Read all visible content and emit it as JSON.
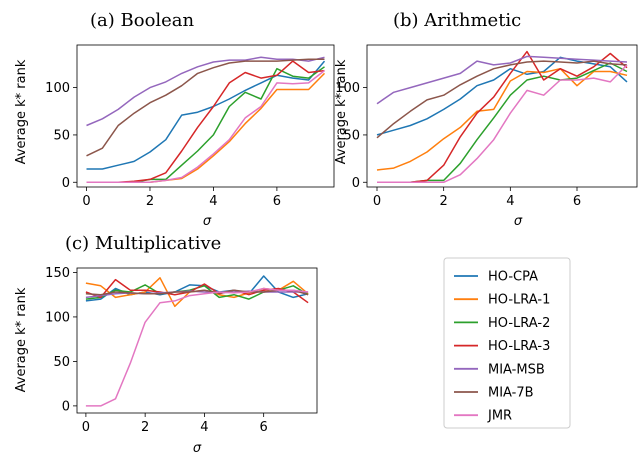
{
  "series_names": [
    "HO-CPA",
    "HO-LRA-1",
    "HO-LRA-2",
    "HO-LRA-3",
    "MIA-MSB",
    "MIA-7B",
    "JMR"
  ],
  "series_colors": [
    "#1f77b4",
    "#ff7f0e",
    "#2ca02c",
    "#d62728",
    "#9467bd",
    "#8c564b",
    "#e377c2"
  ],
  "chart_data": [
    {
      "type": "line",
      "title": "(a) Boolean",
      "xlabel": "σ",
      "ylabel": "Average k* rank",
      "xlim": [
        -0.3,
        7.8
      ],
      "ylim": [
        -5,
        145
      ],
      "xticks": [
        0,
        2,
        4,
        6
      ],
      "yticks": [
        0,
        50,
        100
      ],
      "x": [
        0,
        0.5,
        1,
        1.5,
        2,
        2.5,
        3,
        3.5,
        4,
        4.5,
        5,
        5.5,
        6,
        6.5,
        7,
        7.5
      ],
      "series": [
        {
          "name": "HO-CPA",
          "values": [
            14,
            14,
            18,
            22,
            32,
            45,
            71,
            74,
            80,
            88,
            97,
            105,
            113,
            110,
            108,
            128
          ]
        },
        {
          "name": "HO-LRA-1",
          "values": [
            0,
            0,
            0,
            0,
            0,
            2,
            4,
            14,
            28,
            43,
            62,
            78,
            98,
            98,
            98,
            115
          ]
        },
        {
          "name": "HO-LRA-2",
          "values": [
            0,
            0,
            0,
            0,
            3,
            3,
            18,
            33,
            50,
            80,
            95,
            88,
            120,
            112,
            110,
            122
          ]
        },
        {
          "name": "HO-LRA-3",
          "values": [
            0,
            0,
            0,
            1,
            3,
            10,
            33,
            58,
            80,
            105,
            116,
            110,
            113,
            128,
            116,
            118
          ]
        },
        {
          "name": "MIA-MSB",
          "values": [
            60,
            67,
            77,
            90,
            100,
            106,
            115,
            122,
            127,
            129,
            129,
            132,
            130,
            130,
            128,
            132
          ]
        },
        {
          "name": "MIA-7B",
          "values": [
            28,
            36,
            60,
            73,
            84,
            92,
            102,
            115,
            121,
            126,
            128,
            128,
            128,
            129,
            130,
            130
          ]
        },
        {
          "name": "JMR",
          "values": [
            0,
            0,
            0,
            0,
            0,
            2,
            5,
            16,
            30,
            45,
            68,
            80,
            105,
            104,
            105,
            118
          ]
        }
      ]
    },
    {
      "type": "line",
      "title": "(b) Arithmetic",
      "xlabel": "σ",
      "ylabel": "Average k* rank",
      "xlim": [
        -0.3,
        7.8
      ],
      "ylim": [
        -5,
        145
      ],
      "xticks": [
        0,
        2,
        4,
        6
      ],
      "yticks": [
        0,
        50,
        100
      ],
      "x": [
        0,
        0.5,
        1,
        1.5,
        2,
        2.5,
        3,
        3.5,
        4,
        4.5,
        5,
        5.5,
        6,
        6.5,
        7,
        7.5
      ],
      "series": [
        {
          "name": "HO-CPA",
          "values": [
            50,
            55,
            60,
            67,
            77,
            88,
            102,
            108,
            120,
            114,
            117,
            132,
            128,
            125,
            122,
            106
          ]
        },
        {
          "name": "HO-LRA-1",
          "values": [
            13,
            15,
            22,
            32,
            46,
            58,
            75,
            77,
            107,
            117,
            116,
            120,
            102,
            117,
            117,
            113
          ]
        },
        {
          "name": "HO-LRA-2",
          "values": [
            0,
            0,
            0,
            2,
            2,
            20,
            45,
            68,
            92,
            108,
            112,
            108,
            110,
            118,
            126,
            117
          ]
        },
        {
          "name": "HO-LRA-3",
          "values": [
            0,
            0,
            0,
            2,
            18,
            48,
            73,
            90,
            115,
            138,
            108,
            120,
            112,
            122,
            136,
            121
          ]
        },
        {
          "name": "MIA-MSB",
          "values": [
            83,
            95,
            100,
            105,
            110,
            115,
            128,
            124,
            126,
            133,
            132,
            131,
            130,
            129,
            128,
            127
          ]
        },
        {
          "name": "MIA-7B",
          "values": [
            47,
            62,
            75,
            87,
            92,
            103,
            112,
            120,
            124,
            127,
            128,
            127,
            126,
            128,
            125,
            124
          ]
        },
        {
          "name": "JMR",
          "values": [
            0,
            0,
            0,
            0,
            0,
            8,
            25,
            45,
            73,
            97,
            92,
            108,
            108,
            110,
            106,
            124
          ]
        }
      ]
    },
    {
      "type": "line",
      "title": "(c) Multiplicative",
      "xlabel": "σ",
      "ylabel": "Average k* rank",
      "xlim": [
        -0.3,
        7.8
      ],
      "ylim": [
        -8,
        155
      ],
      "xticks": [
        0,
        2,
        4,
        6
      ],
      "yticks": [
        0,
        50,
        100,
        150
      ],
      "x": [
        0,
        0.5,
        1,
        1.5,
        2,
        2.5,
        3,
        3.5,
        4,
        4.5,
        5,
        5.5,
        6,
        6.5,
        7,
        7.5
      ],
      "series": [
        {
          "name": "HO-CPA",
          "values": [
            118,
            120,
            132,
            125,
            128,
            125,
            128,
            136,
            135,
            128,
            130,
            126,
            146,
            128,
            122,
            126
          ]
        },
        {
          "name": "HO-LRA-1",
          "values": [
            138,
            135,
            122,
            125,
            128,
            144,
            112,
            128,
            130,
            125,
            122,
            127,
            132,
            130,
            140,
            126
          ]
        },
        {
          "name": "HO-LRA-2",
          "values": [
            120,
            122,
            130,
            128,
            136,
            126,
            128,
            130,
            135,
            122,
            125,
            120,
            128,
            130,
            135,
            125
          ]
        },
        {
          "name": "HO-LRA-3",
          "values": [
            128,
            122,
            142,
            130,
            130,
            128,
            125,
            128,
            137,
            126,
            130,
            125,
            130,
            132,
            128,
            116
          ]
        },
        {
          "name": "MIA-MSB",
          "values": [
            122,
            124,
            126,
            127,
            126,
            127,
            128,
            129,
            128,
            127,
            128,
            129,
            128,
            128,
            128,
            128
          ]
        },
        {
          "name": "MIA-7B",
          "values": [
            126,
            125,
            128,
            127,
            126,
            126,
            128,
            128,
            130,
            127,
            130,
            128,
            128,
            130,
            130,
            125
          ]
        },
        {
          "name": "JMR",
          "values": [
            0,
            0,
            8,
            48,
            94,
            116,
            118,
            124,
            126,
            128,
            127,
            128,
            132,
            130,
            130,
            128
          ]
        }
      ]
    }
  ]
}
